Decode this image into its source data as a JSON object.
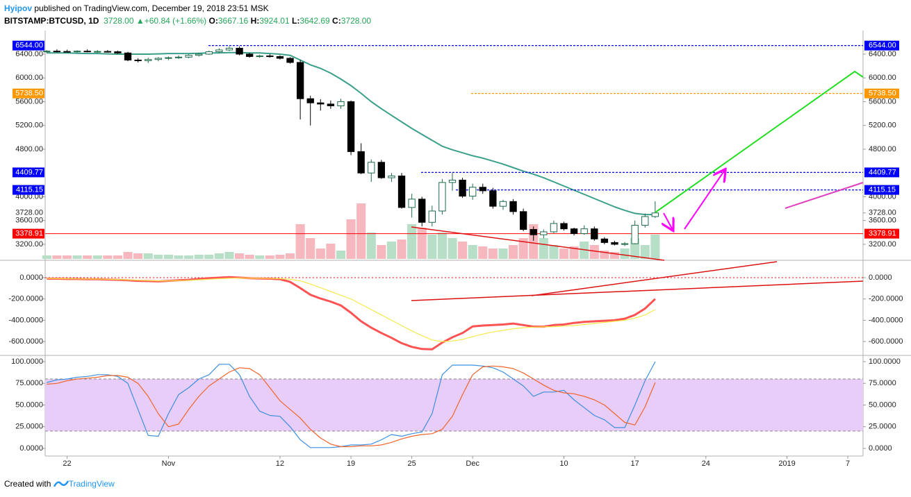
{
  "header": {
    "author": "Hyipov",
    "published": "published on TradingView.com, December 19, 2018 23:51 MSK",
    "symbol": "BITSTAMP:BTCUSD, 1D",
    "price": "3728.00",
    "arrow": "▲",
    "change": "+60.84 (+1.66%)",
    "o_label": "O:",
    "o": "3667.16",
    "h_label": "H:",
    "h": "3924.01",
    "l_label": "L:",
    "l": "3642.69",
    "c_label": "C:",
    "c": "3728.00"
  },
  "footer": {
    "created": "Created with",
    "brand": "TradingView"
  },
  "chart_data": [
    {
      "type": "candlestick",
      "categories": [
        null,
        null,
        "22",
        null,
        null,
        null,
        null,
        null,
        null,
        null,
        null,
        null,
        "Nov",
        null,
        null,
        null,
        null,
        null,
        null,
        null,
        null,
        null,
        null,
        "12",
        null,
        null,
        null,
        null,
        null,
        null,
        "19",
        null,
        null,
        null,
        null,
        null,
        "25",
        null,
        null,
        null,
        null,
        null,
        "Dec",
        null,
        null,
        null,
        null,
        null,
        null,
        null,
        null,
        "10",
        null,
        null,
        null,
        null,
        null,
        null,
        "17",
        null,
        null,
        null,
        null,
        null,
        null,
        "24",
        null,
        null,
        null,
        null,
        null,
        null,
        null,
        "2019",
        null,
        null,
        null,
        null,
        null,
        "7",
        null
      ],
      "open": [
        6440,
        6450,
        6445,
        6440,
        6450,
        6440,
        6445,
        6440,
        6420,
        6300,
        6290,
        6310,
        6330,
        6340,
        6350,
        6380,
        6400,
        6440,
        6470,
        6500,
        6400,
        6360,
        6370,
        6360,
        6330,
        6260,
        5650,
        5580,
        5560,
        5530,
        5600,
        4760,
        4400,
        4580,
        4320,
        4350,
        3820,
        3960,
        3570,
        3760,
        4240,
        4280,
        4010,
        4160,
        4100,
        3840,
        3920,
        3750,
        3450,
        3360,
        3410,
        3550,
        3460,
        3380,
        3460,
        3290,
        3230,
        3200,
        3210,
        3520,
        3667.16,
        null,
        null,
        null,
        null,
        null,
        null,
        null,
        null,
        null,
        null,
        null,
        null,
        null,
        null,
        null,
        null,
        null,
        null,
        null,
        null
      ],
      "high": [
        6470,
        6480,
        6475,
        6465,
        6480,
        6470,
        6470,
        6460,
        6440,
        6330,
        6340,
        6350,
        6360,
        6380,
        6400,
        6420,
        6460,
        6500,
        6530,
        6530,
        6420,
        6390,
        6400,
        6380,
        6350,
        6300,
        5700,
        5640,
        5620,
        5650,
        5620,
        4900,
        4630,
        4620,
        4400,
        4400,
        4050,
        4000,
        3850,
        4300,
        4400,
        4320,
        4220,
        4220,
        4150,
        3950,
        3960,
        3800,
        3500,
        3450,
        3600,
        3580,
        3480,
        3520,
        3500,
        3320,
        3260,
        3240,
        3600,
        3720,
        3924.01,
        null,
        null,
        null,
        null,
        null,
        null,
        null,
        null,
        null,
        null,
        null,
        null,
        null,
        null,
        null,
        null,
        null,
        null,
        null,
        null
      ],
      "low": [
        6420,
        6430,
        6425,
        6420,
        6430,
        6420,
        6425,
        6400,
        6280,
        6260,
        6250,
        6280,
        6300,
        6320,
        6330,
        6360,
        6390,
        6420,
        6450,
        6380,
        6340,
        6340,
        6340,
        6310,
        6240,
        5300,
        5200,
        5450,
        5480,
        5480,
        4700,
        4380,
        4250,
        4300,
        4250,
        3800,
        3650,
        3500,
        3500,
        3700,
        4100,
        3980,
        3950,
        4050,
        3800,
        3780,
        3700,
        3420,
        3260,
        3300,
        3380,
        3430,
        3350,
        3360,
        3260,
        3200,
        3180,
        3170,
        3200,
        3480,
        3642.69,
        null,
        null,
        null,
        null,
        null,
        null,
        null,
        null,
        null,
        null,
        null,
        null,
        null,
        null,
        null,
        null,
        null,
        null,
        null,
        null
      ],
      "close": [
        6450,
        6445,
        6440,
        6450,
        6440,
        6445,
        6440,
        6420,
        6300,
        6290,
        6310,
        6330,
        6340,
        6350,
        6380,
        6400,
        6440,
        6470,
        6500,
        6400,
        6360,
        6370,
        6360,
        6330,
        6260,
        5650,
        5580,
        5560,
        5530,
        5600,
        4760,
        4400,
        4580,
        4320,
        4350,
        3820,
        3960,
        3570,
        3760,
        4240,
        4280,
        4010,
        4160,
        4100,
        3840,
        3920,
        3750,
        3450,
        3360,
        3410,
        3550,
        3460,
        3380,
        3460,
        3290,
        3230,
        3200,
        3210,
        3520,
        3667.16,
        3728,
        null,
        null,
        null,
        null,
        null,
        null,
        null,
        null,
        null,
        null,
        null,
        null,
        null,
        null,
        null,
        null,
        null,
        null,
        null,
        null
      ],
      "up_color": "#ffffff",
      "down_color": "#000000",
      "border_color": "#1e6b4a",
      "series": [
        {
          "color": "#3a9f8a",
          "values": [
            6420,
            6420,
            6420,
            6415,
            6410,
            6410,
            6405,
            6400,
            6400,
            6400,
            6400,
            6405,
            6410,
            6410,
            6410,
            6415,
            6420,
            6420,
            6425,
            6425,
            6420,
            6420,
            6410,
            6400,
            6380,
            6300,
            6220,
            6160,
            6080,
            5980,
            5870,
            5740,
            5600,
            5480,
            5370,
            5260,
            5150,
            5050,
            4950,
            4850,
            4790,
            4740,
            4690,
            4650,
            4600,
            4550,
            4490,
            4430,
            4380,
            4320,
            4250,
            4180,
            4110,
            4040,
            3970,
            3900,
            3830,
            3770,
            3720,
            3700,
            3700,
            null,
            null,
            null,
            null,
            null,
            null,
            null,
            null,
            null,
            null,
            null,
            null,
            null,
            null,
            null,
            null,
            null,
            null,
            null,
            null
          ]
        }
      ],
      "volume": [
        5,
        5,
        5,
        5,
        5,
        5,
        5,
        5,
        10,
        8,
        8,
        6,
        6,
        5,
        5,
        6,
        6,
        8,
        10,
        8,
        6,
        5,
        5,
        6,
        8,
        50,
        30,
        15,
        22,
        12,
        57,
        80,
        38,
        20,
        25,
        28,
        50,
        45,
        35,
        38,
        30,
        25,
        20,
        18,
        15,
        15,
        20,
        30,
        50,
        30,
        20,
        15,
        18,
        25,
        20,
        12,
        10,
        15,
        30,
        20,
        35,
        null,
        null,
        null,
        null,
        null,
        null,
        null,
        null,
        null,
        null,
        null,
        null,
        null,
        null,
        null,
        null,
        null,
        null,
        null,
        null
      ],
      "volume_lim": [
        0,
        313
      ],
      "volume_up_color": "#b7dfc8",
      "volume_down_color": "#f6b8be",
      "ylim": [
        2954,
        6610
      ],
      "yticks": [
        {
          "value": 6400,
          "label": "6400.00"
        },
        {
          "value": 6000,
          "label": "6000.00"
        },
        {
          "value": 5600,
          "label": "5600.00"
        },
        {
          "value": 5200,
          "label": "5200.00"
        },
        {
          "value": 4800,
          "label": "4800.00"
        },
        {
          "value": 4000,
          "label": "4000.00"
        },
        {
          "value": 3600,
          "label": "3600.00"
        },
        {
          "value": 3200,
          "label": "3200.00"
        }
      ],
      "levels": [
        {
          "value": 6544,
          "label": "6544.00",
          "color": "#0000ff"
        },
        {
          "value": 5738.5,
          "label": "5738.50",
          "color": "#ff9800"
        },
        {
          "value": 4409.77,
          "label": "4409.77",
          "color": "#0000ff"
        },
        {
          "value": 4115.15,
          "label": "4115.15",
          "color": "#0000ff"
        },
        {
          "value": 3378.91,
          "label": "3378.91",
          "color": "#ff0000"
        }
      ],
      "last_price": {
        "value": 3728,
        "label": "3728.00"
      }
    },
    {
      "type": "line",
      "series": [
        {
          "color": "#ff5252",
          "values": [
            -10,
            -10,
            -12,
            -12,
            -15,
            -15,
            -18,
            -20,
            -25,
            -30,
            -32,
            -35,
            -30,
            -25,
            -20,
            -12,
            -5,
            0,
            5,
            0,
            -5,
            -8,
            -10,
            -15,
            -40,
            -98,
            -160,
            -196,
            -225,
            -261,
            -330,
            -410,
            -470,
            -520,
            -565,
            -615,
            -650,
            -670,
            -673,
            -610,
            -560,
            -520,
            -458,
            -450,
            -445,
            -440,
            -431,
            -445,
            -460,
            -460,
            -445,
            -440,
            -425,
            -415,
            -410,
            -405,
            -400,
            -385,
            -350,
            -290,
            -200,
            null,
            null,
            null,
            null,
            null,
            null,
            null,
            null,
            null,
            null,
            null,
            null,
            null,
            null,
            null,
            null,
            null,
            null,
            null,
            null
          ]
        },
        {
          "color": "#f5e94a",
          "values": [
            -8,
            -9,
            -10,
            -11,
            -12,
            -13,
            -15,
            -17,
            -20,
            -24,
            -28,
            -30,
            -30,
            -28,
            -25,
            -20,
            -15,
            -10,
            -5,
            -3,
            -4,
            -6,
            -8,
            -10,
            -15,
            -30,
            -60,
            -95,
            -130,
            -165,
            -200,
            -250,
            -300,
            -350,
            -400,
            -450,
            -500,
            -545,
            -585,
            -600,
            -595,
            -580,
            -555,
            -530,
            -510,
            -495,
            -480,
            -470,
            -465,
            -462,
            -460,
            -455,
            -450,
            -440,
            -430,
            -420,
            -410,
            -400,
            -380,
            -350,
            -300,
            null,
            null,
            null,
            null,
            null,
            null,
            null,
            null,
            null,
            null,
            null,
            null,
            null,
            null,
            null,
            null,
            null,
            null,
            null,
            null
          ]
        }
      ],
      "ylim": [
        -717,
        150
      ],
      "yticks": [
        {
          "value": 0,
          "label": "0.0000"
        },
        {
          "value": -200,
          "label": "-200.0000"
        },
        {
          "value": -400,
          "label": "-400.0000"
        },
        {
          "value": -600,
          "label": "-600.0000"
        }
      ],
      "zero_line": {
        "value": 0,
        "color": "#ff0000"
      }
    },
    {
      "type": "line",
      "series": [
        {
          "color": "#3b8fe0",
          "values": [
            76,
            79,
            80,
            82,
            83,
            85,
            85,
            83,
            75,
            45,
            15,
            14,
            40,
            62,
            70,
            80,
            85,
            97,
            97,
            85,
            60,
            43,
            38,
            37,
            25,
            10,
            1,
            1,
            1,
            2,
            4,
            4,
            5,
            10,
            16,
            14,
            17,
            19,
            40,
            85,
            96,
            96,
            96,
            95,
            93,
            88,
            80,
            72,
            60,
            65,
            65,
            67,
            56,
            47,
            38,
            33,
            24,
            24,
            50,
            78,
            100,
            null,
            null,
            null,
            null,
            null,
            null,
            null,
            null,
            null,
            null,
            null,
            null,
            null,
            null,
            null,
            null,
            null,
            null,
            null,
            null
          ]
        },
        {
          "color": "#f0642c",
          "values": [
            74,
            75,
            78,
            80,
            81,
            82,
            84,
            84,
            82,
            75,
            60,
            40,
            25,
            28,
            45,
            60,
            72,
            80,
            88,
            93,
            92,
            85,
            70,
            55,
            45,
            35,
            22,
            12,
            5,
            2,
            2,
            3,
            3,
            4,
            7,
            11,
            14,
            16,
            17,
            22,
            37,
            62,
            85,
            94,
            95,
            94,
            92,
            87,
            80,
            73,
            67,
            64,
            63,
            60,
            56,
            50,
            40,
            30,
            27,
            48,
            76,
            null,
            null,
            null,
            null,
            null,
            null,
            null,
            null,
            null,
            null,
            null,
            null,
            null,
            null,
            null,
            null,
            null,
            null,
            null,
            null
          ]
        }
      ],
      "ylim": [
        -7.2,
        105.6
      ],
      "yticks": [
        {
          "value": 100,
          "label": "100.0000"
        },
        {
          "value": 75,
          "label": "75.0000"
        },
        {
          "value": 50,
          "label": "50.0000"
        },
        {
          "value": 25,
          "label": "25.0000"
        },
        {
          "value": 0,
          "label": "0.0000"
        }
      ],
      "band": [
        20,
        80
      ],
      "band_color": "#e8cdf8"
    }
  ]
}
